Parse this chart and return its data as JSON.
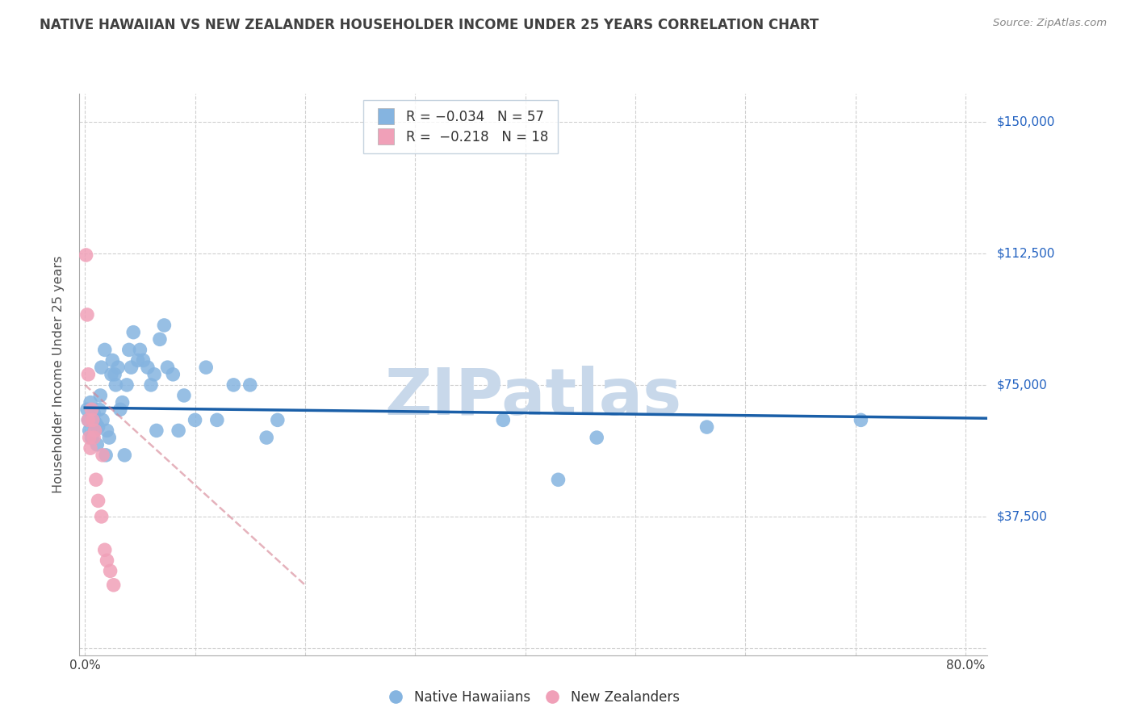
{
  "title": "NATIVE HAWAIIAN VS NEW ZEALANDER HOUSEHOLDER INCOME UNDER 25 YEARS CORRELATION CHART",
  "source": "Source: ZipAtlas.com",
  "ylabel": "Householder Income Under 25 years",
  "xlim": [
    -0.005,
    0.82
  ],
  "ylim": [
    -2000,
    158000
  ],
  "yticks": [
    0,
    37500,
    75000,
    112500,
    150000
  ],
  "ytick_labels": [
    "",
    "$37,500",
    "$75,000",
    "$112,500",
    "$150,000"
  ],
  "xticks": [
    0.0,
    0.1,
    0.2,
    0.3,
    0.4,
    0.5,
    0.6,
    0.7,
    0.8
  ],
  "blue_color": "#85b4e0",
  "pink_color": "#f0a0b8",
  "blue_line_color": "#1a5fa8",
  "pink_line_color": "#d48090",
  "title_color": "#404040",
  "grid_color": "#d0d0d0",
  "right_label_color": "#2060c0",
  "watermark_color": "#c8d8ea",
  "native_hawaiian_x": [
    0.002,
    0.003,
    0.004,
    0.005,
    0.006,
    0.007,
    0.008,
    0.008,
    0.009,
    0.01,
    0.011,
    0.012,
    0.013,
    0.014,
    0.015,
    0.016,
    0.018,
    0.019,
    0.02,
    0.022,
    0.024,
    0.025,
    0.027,
    0.028,
    0.03,
    0.032,
    0.034,
    0.036,
    0.038,
    0.04,
    0.042,
    0.044,
    0.048,
    0.05,
    0.053,
    0.057,
    0.06,
    0.063,
    0.065,
    0.068,
    0.072,
    0.075,
    0.08,
    0.085,
    0.09,
    0.1,
    0.11,
    0.12,
    0.135,
    0.15,
    0.165,
    0.175,
    0.38,
    0.43,
    0.465,
    0.565,
    0.705
  ],
  "native_hawaiian_y": [
    68000,
    65000,
    62000,
    70000,
    60000,
    60000,
    65000,
    67000,
    62000,
    64000,
    58000,
    63000,
    68000,
    72000,
    80000,
    65000,
    85000,
    55000,
    62000,
    60000,
    78000,
    82000,
    78000,
    75000,
    80000,
    68000,
    70000,
    55000,
    75000,
    85000,
    80000,
    90000,
    82000,
    85000,
    82000,
    80000,
    75000,
    78000,
    62000,
    88000,
    92000,
    80000,
    78000,
    62000,
    72000,
    65000,
    80000,
    65000,
    75000,
    75000,
    60000,
    65000,
    65000,
    48000,
    60000,
    63000,
    65000
  ],
  "new_zealander_x": [
    0.001,
    0.002,
    0.003,
    0.003,
    0.004,
    0.005,
    0.006,
    0.007,
    0.008,
    0.009,
    0.01,
    0.012,
    0.015,
    0.016,
    0.018,
    0.02,
    0.023,
    0.026
  ],
  "new_zealander_y": [
    112000,
    95000,
    78000,
    65000,
    60000,
    57000,
    68000,
    65000,
    60000,
    62000,
    48000,
    42000,
    37500,
    55000,
    28000,
    25000,
    22000,
    18000
  ],
  "blue_trendline_x": [
    0.0,
    0.82
  ],
  "blue_trendline_y": [
    68500,
    65500
  ],
  "pink_trendline_x": [
    0.0,
    0.2
  ],
  "pink_trendline_y": [
    75000,
    18000
  ]
}
